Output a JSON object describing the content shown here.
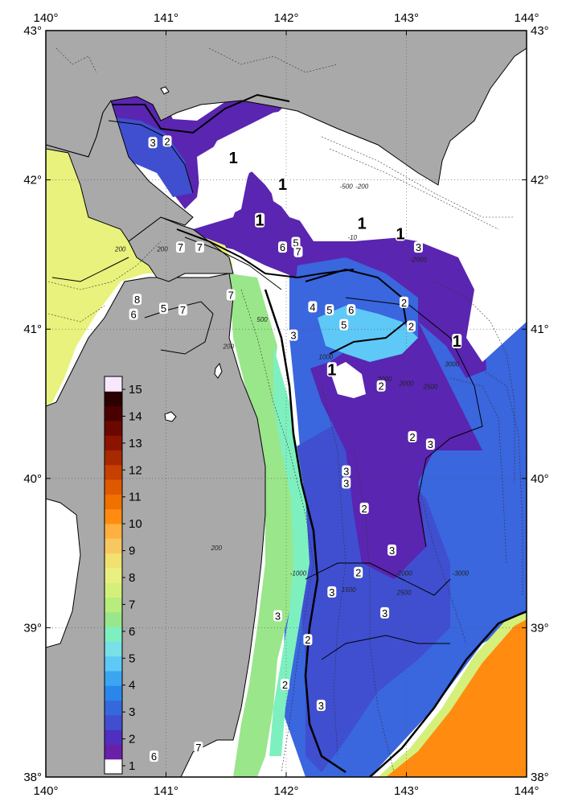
{
  "map": {
    "lon_range": [
      140,
      144
    ],
    "lat_range": [
      38,
      43
    ],
    "lon_ticks": [
      "140°",
      "141°",
      "142°",
      "143°",
      "144°"
    ],
    "lat_ticks": [
      "38°",
      "39°",
      "40°",
      "41°",
      "42°",
      "43°"
    ],
    "grid": "dotted",
    "land_color": "#a9a9a9",
    "background_color": "#ffffff"
  },
  "colorbar": {
    "labels": [
      "1",
      "2",
      "3",
      "4",
      "5",
      "6",
      "7",
      "8",
      "9",
      "10",
      "11",
      "12",
      "13",
      "14",
      "15"
    ],
    "colors": [
      "#ffffff",
      "#6a1fa8",
      "#4e2fc0",
      "#3f4fd0",
      "#3568dc",
      "#2a86ea",
      "#3aa6f2",
      "#5ec8f6",
      "#78e0e8",
      "#7ef0c0",
      "#9ae68a",
      "#b8ec7c",
      "#d4f07a",
      "#eaf080",
      "#f2e070",
      "#f8c860",
      "#ffb040",
      "#ff8c10",
      "#f07000",
      "#e05800",
      "#c84000",
      "#a82800",
      "#8a1400",
      "#6a0800",
      "#4a0000",
      "#2a0000",
      "#f8e8ff"
    ]
  },
  "contour_labels": [
    {
      "text": "1",
      "lon": 141.56,
      "lat": 42.15,
      "big": true
    },
    {
      "text": "1",
      "lon": 141.78,
      "lat": 41.73,
      "big": true
    },
    {
      "text": "1",
      "lon": 141.97,
      "lat": 41.97,
      "big": true
    },
    {
      "text": "1",
      "lon": 142.63,
      "lat": 41.71,
      "big": true
    },
    {
      "text": "1",
      "lon": 142.95,
      "lat": 41.64,
      "big": true
    },
    {
      "text": "1",
      "lon": 143.42,
      "lat": 40.92,
      "big": true
    },
    {
      "text": "1",
      "lon": 142.38,
      "lat": 40.73,
      "big": true
    },
    {
      "text": "2",
      "lon": 141.01,
      "lat": 42.26,
      "big": false
    },
    {
      "text": "3",
      "lon": 140.89,
      "lat": 42.25,
      "big": false
    },
    {
      "text": "7",
      "lon": 141.12,
      "lat": 41.55,
      "big": false
    },
    {
      "text": "7",
      "lon": 141.28,
      "lat": 41.55,
      "big": false
    },
    {
      "text": "7",
      "lon": 141.54,
      "lat": 41.23,
      "big": false
    },
    {
      "text": "7",
      "lon": 141.14,
      "lat": 41.13,
      "big": false
    },
    {
      "text": "6",
      "lon": 141.97,
      "lat": 41.55,
      "big": false
    },
    {
      "text": "5",
      "lon": 142.08,
      "lat": 41.58,
      "big": false
    },
    {
      "text": "7",
      "lon": 142.1,
      "lat": 41.52,
      "big": false
    },
    {
      "text": "3",
      "lon": 143.1,
      "lat": 41.55,
      "big": false
    },
    {
      "text": "2",
      "lon": 142.98,
      "lat": 41.18,
      "big": false
    },
    {
      "text": "2",
      "lon": 143.04,
      "lat": 41.02,
      "big": false
    },
    {
      "text": "4",
      "lon": 142.22,
      "lat": 41.15,
      "big": false
    },
    {
      "text": "3",
      "lon": 142.06,
      "lat": 40.96,
      "big": false
    },
    {
      "text": "5",
      "lon": 142.36,
      "lat": 41.13,
      "big": false
    },
    {
      "text": "5",
      "lon": 142.48,
      "lat": 41.03,
      "big": false
    },
    {
      "text": "6",
      "lon": 142.54,
      "lat": 41.13,
      "big": false
    },
    {
      "text": "8",
      "lon": 140.76,
      "lat": 41.2,
      "big": false
    },
    {
      "text": "6",
      "lon": 140.73,
      "lat": 41.1,
      "big": false
    },
    {
      "text": "5",
      "lon": 140.98,
      "lat": 41.14,
      "big": false
    },
    {
      "text": "2",
      "lon": 142.79,
      "lat": 40.62,
      "big": false
    },
    {
      "text": "2",
      "lon": 143.05,
      "lat": 40.28,
      "big": false
    },
    {
      "text": "3",
      "lon": 143.2,
      "lat": 40.23,
      "big": false
    },
    {
      "text": "3",
      "lon": 142.5,
      "lat": 40.05,
      "big": false
    },
    {
      "text": "3",
      "lon": 142.5,
      "lat": 39.97,
      "big": false
    },
    {
      "text": "2",
      "lon": 142.65,
      "lat": 39.8,
      "big": false
    },
    {
      "text": "3",
      "lon": 142.88,
      "lat": 39.52,
      "big": false
    },
    {
      "text": "2",
      "lon": 142.6,
      "lat": 39.37,
      "big": false
    },
    {
      "text": "3",
      "lon": 142.38,
      "lat": 39.24,
      "big": false
    },
    {
      "text": "3",
      "lon": 142.82,
      "lat": 39.1,
      "big": false
    },
    {
      "text": "3",
      "lon": 141.93,
      "lat": 39.08,
      "big": false
    },
    {
      "text": "2",
      "lon": 142.18,
      "lat": 38.92,
      "big": false
    },
    {
      "text": "2",
      "lon": 141.99,
      "lat": 38.62,
      "big": false
    },
    {
      "text": "3",
      "lon": 142.29,
      "lat": 38.48,
      "big": false
    },
    {
      "text": "7",
      "lon": 141.27,
      "lat": 38.2,
      "big": false
    },
    {
      "text": "6",
      "lon": 140.9,
      "lat": 38.14,
      "big": false
    }
  ],
  "depth_labels": [
    {
      "text": "-500",
      "lon": 142.5,
      "lat": 41.94
    },
    {
      "text": "-200",
      "lon": 142.63,
      "lat": 41.94
    },
    {
      "text": "-10",
      "lon": 142.55,
      "lat": 41.6
    },
    {
      "text": "-2000",
      "lon": 143.1,
      "lat": 41.45
    },
    {
      "text": "200",
      "lon": 140.62,
      "lat": 41.52
    },
    {
      "text": "200",
      "lon": 140.97,
      "lat": 41.52
    },
    {
      "text": "500",
      "lon": 141.8,
      "lat": 41.05
    },
    {
      "text": "200",
      "lon": 141.52,
      "lat": 40.87
    },
    {
      "text": "1000",
      "lon": 142.33,
      "lat": 40.8
    },
    {
      "text": "2000",
      "lon": 142.82,
      "lat": 40.65
    },
    {
      "text": "2000",
      "lon": 143.0,
      "lat": 40.62
    },
    {
      "text": "2500",
      "lon": 143.2,
      "lat": 40.6
    },
    {
      "text": "3000",
      "lon": 143.38,
      "lat": 40.75
    },
    {
      "text": "200",
      "lon": 141.42,
      "lat": 39.52
    },
    {
      "text": "-1000",
      "lon": 142.1,
      "lat": 39.35
    },
    {
      "text": "1500",
      "lon": 142.52,
      "lat": 39.24
    },
    {
      "text": "-2000",
      "lon": 142.98,
      "lat": 39.35
    },
    {
      "text": "2500",
      "lon": 142.98,
      "lat": 39.22
    },
    {
      "text": "-3000",
      "lon": 143.45,
      "lat": 39.35
    }
  ]
}
